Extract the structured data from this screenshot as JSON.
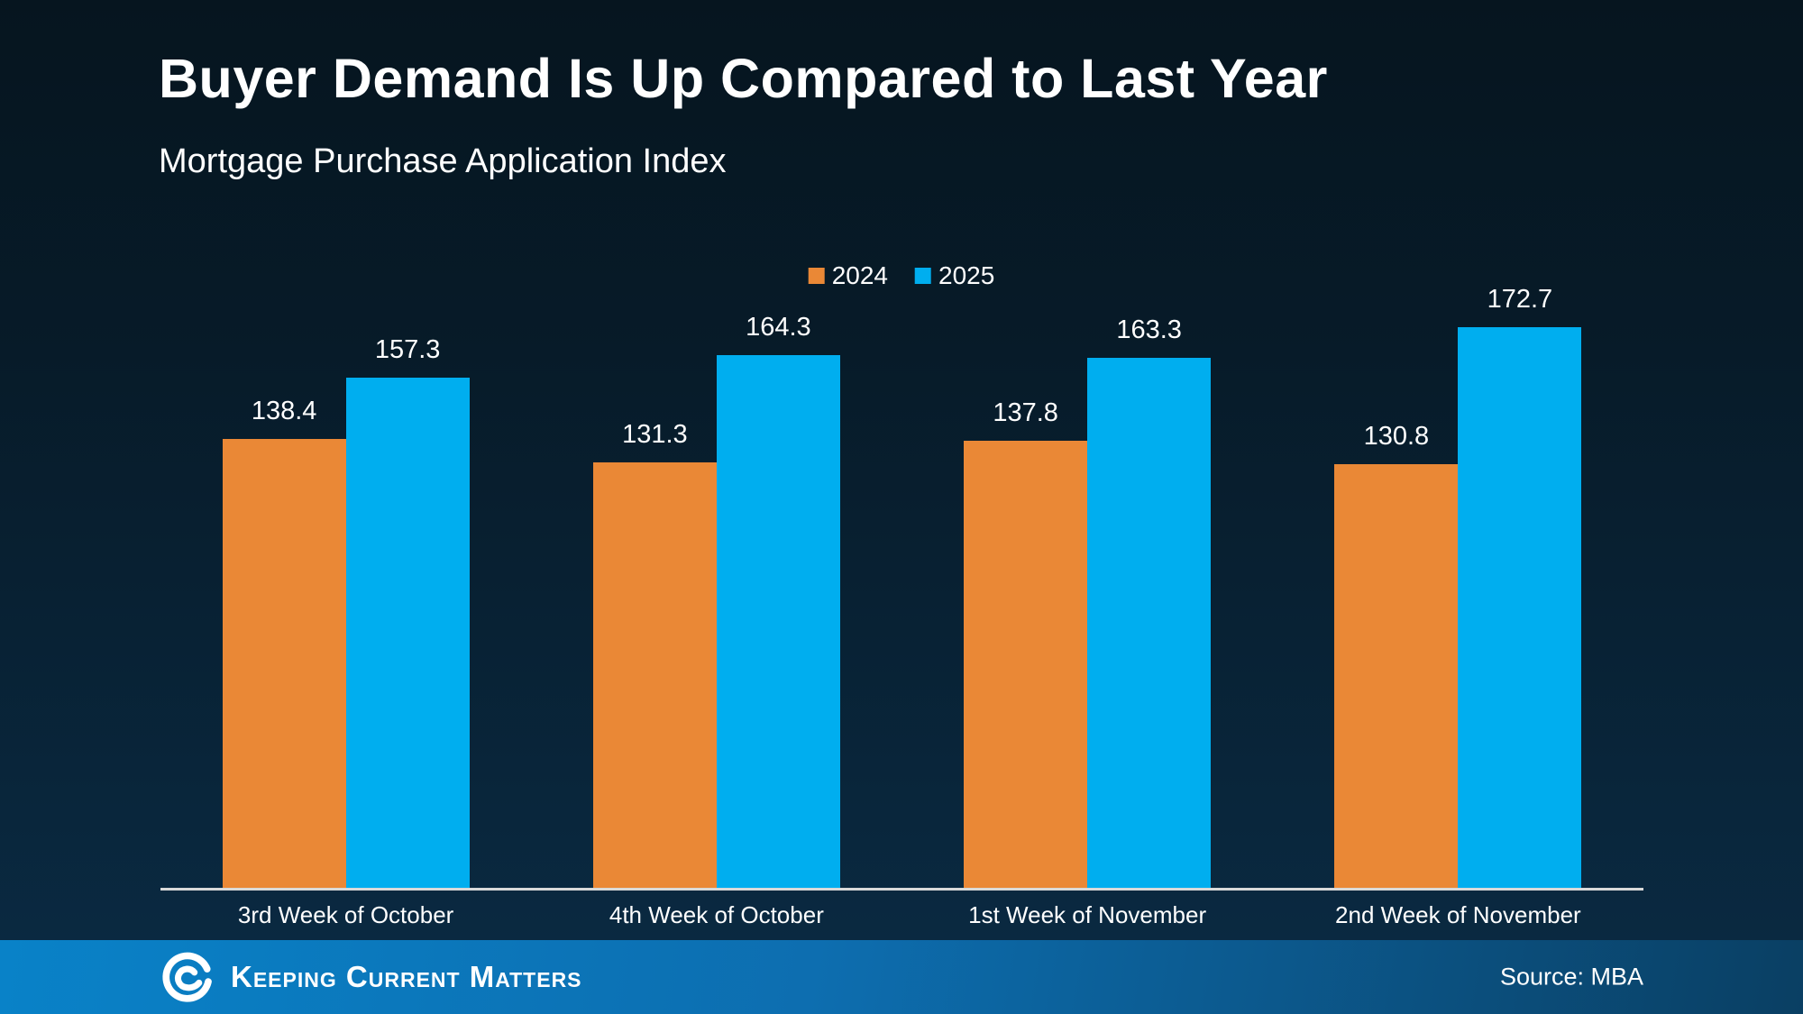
{
  "slide": {
    "title": "Buyer Demand Is Up Compared to Last Year",
    "subtitle": "Mortgage Purchase Application Index"
  },
  "chart_data": {
    "type": "bar",
    "categories": [
      "3rd Week of October",
      "4th Week of October",
      "1st Week of November",
      "2nd Week of November"
    ],
    "series": [
      {
        "name": "2024",
        "color": "#EA8836",
        "values": [
          138.4,
          131.3,
          137.8,
          130.8
        ]
      },
      {
        "name": "2025",
        "color": "#00AEEF",
        "values": [
          157.3,
          164.3,
          163.3,
          172.7
        ]
      }
    ],
    "title": "Buyer Demand Is Up Compared to Last Year",
    "subtitle": "Mortgage Purchase Application Index",
    "xlabel": "",
    "ylabel": "",
    "ylim": [
      0,
      180
    ],
    "grid": false,
    "legend_position": "top-center",
    "value_labels": true
  },
  "footer": {
    "brand": "Keeping Current Matters",
    "source": "Source: MBA"
  },
  "colors": {
    "background_top": "#06151F",
    "background_bottom": "#0A2B44",
    "footer_left": "#0982C8",
    "footer_right": "#0A3F63",
    "axis_line": "#D9D9D9",
    "text": "#FFFFFF"
  }
}
